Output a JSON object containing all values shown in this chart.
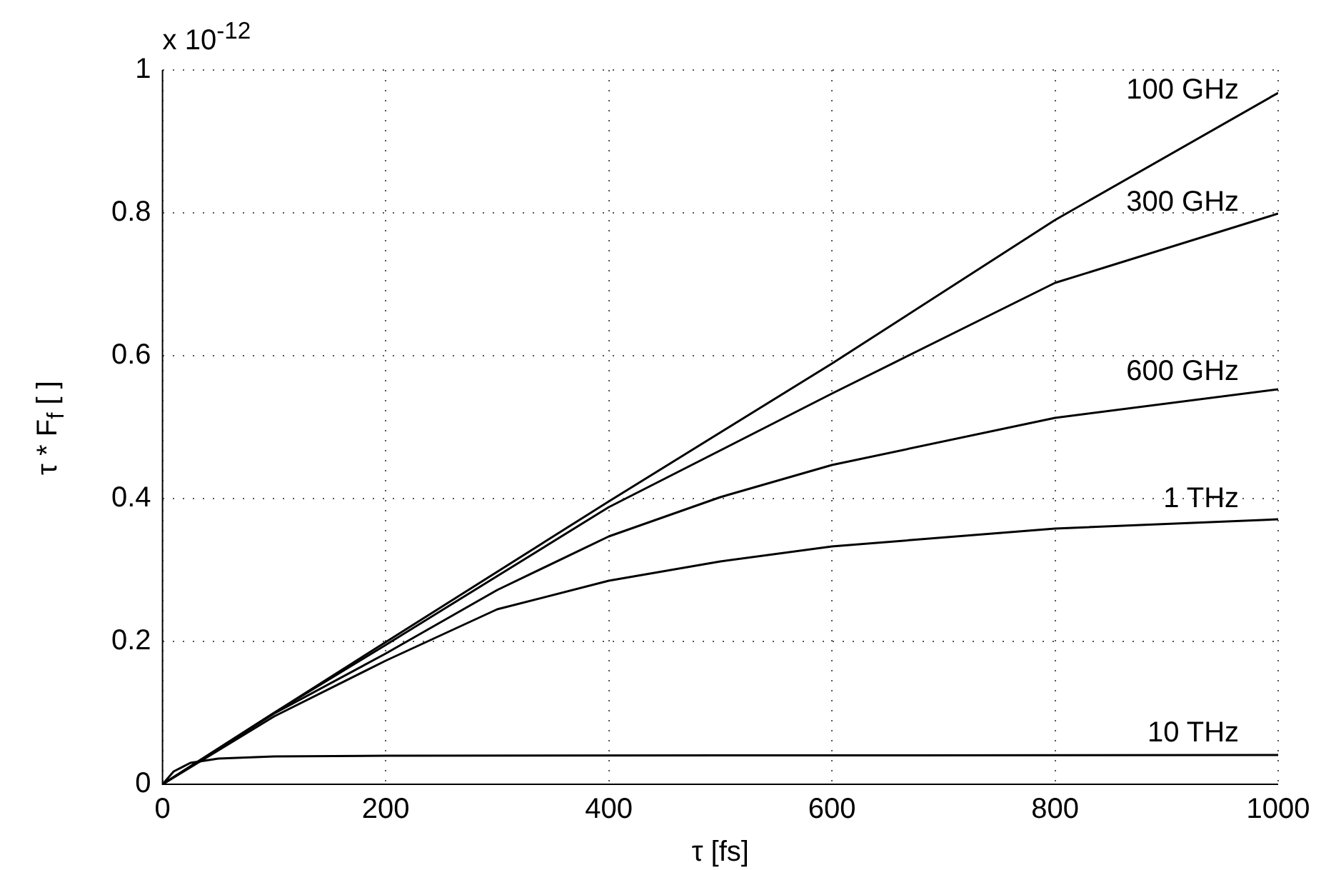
{
  "chart_data": {
    "type": "line",
    "xlabel": "τ [fs]",
    "ylabel": "τ * F$_{f}$ [ ]",
    "annotations": [
      "x 10$^{-12}$"
    ],
    "series": [
      {
        "name": "100 GHz",
        "color": "#000000",
        "x": [
          0,
          100,
          200,
          400,
          600,
          800,
          1000
        ],
        "values": [
          0,
          0.1,
          0.199,
          0.396,
          0.589,
          0.79,
          0.968
        ]
      },
      {
        "name": "300 GHz",
        "color": "#000000",
        "x": [
          0,
          100,
          200,
          400,
          600,
          800,
          1000
        ],
        "values": [
          0,
          0.1,
          0.195,
          0.388,
          0.547,
          0.702,
          0.799
        ]
      },
      {
        "name": "600 GHz",
        "color": "#000000",
        "x": [
          0,
          100,
          200,
          300,
          400,
          500,
          600,
          800,
          1000
        ],
        "values": [
          0,
          0.099,
          0.183,
          0.272,
          0.347,
          0.402,
          0.447,
          0.513,
          0.553
        ]
      },
      {
        "name": "1 THz",
        "color": "#000000",
        "x": [
          0,
          100,
          200,
          300,
          400,
          500,
          600,
          800,
          1000
        ],
        "values": [
          0,
          0.095,
          0.173,
          0.245,
          0.285,
          0.312,
          0.333,
          0.358,
          0.371
        ]
      },
      {
        "name": "10 THz",
        "color": "#000000",
        "x": [
          0,
          10,
          25,
          50,
          100,
          200,
          1000
        ],
        "values": [
          0,
          0.018,
          0.03,
          0.036,
          0.039,
          0.04,
          0.041
        ]
      }
    ],
    "xlim": [
      0,
      1000
    ],
    "xticks": [
      0,
      200,
      400,
      600,
      800,
      1000
    ],
    "ylim": [
      0,
      1
    ],
    "yticks": [
      0,
      0.2,
      0.4,
      0.6,
      0.8,
      1
    ],
    "grid": true,
    "legend": false,
    "marker": "none",
    "line_style": "solid"
  }
}
